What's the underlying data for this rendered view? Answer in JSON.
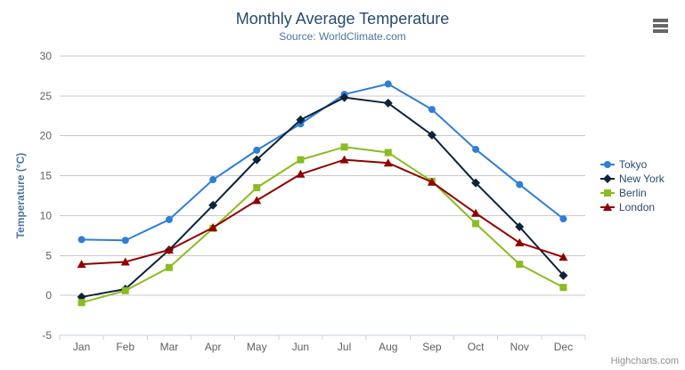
{
  "chart": {
    "title": "Monthly Average Temperature",
    "subtitle": "Source: WorldClimate.com",
    "credits_label": "Highcharts.com"
  },
  "icons": {
    "export_menu": "hamburger-menu-icon"
  },
  "chart_data": {
    "type": "line",
    "title": "Monthly Average Temperature",
    "subtitle": "Source: WorldClimate.com",
    "categories": [
      "Jan",
      "Feb",
      "Mar",
      "Apr",
      "May",
      "Jun",
      "Jul",
      "Aug",
      "Sep",
      "Oct",
      "Nov",
      "Dec"
    ],
    "series": [
      {
        "name": "Tokyo",
        "color": "#2f7ed8",
        "marker": "circle",
        "values": [
          7.0,
          6.9,
          9.5,
          14.5,
          18.2,
          21.5,
          25.2,
          26.5,
          23.3,
          18.3,
          13.9,
          9.6
        ]
      },
      {
        "name": "New York",
        "color": "#0d233a",
        "marker": "diamond",
        "values": [
          -0.2,
          0.8,
          5.7,
          11.3,
          17.0,
          22.0,
          24.8,
          24.1,
          20.1,
          14.1,
          8.6,
          2.5
        ]
      },
      {
        "name": "Berlin",
        "color": "#8bbc21",
        "marker": "square",
        "values": [
          -0.9,
          0.6,
          3.5,
          8.4,
          13.5,
          17.0,
          18.6,
          17.9,
          14.3,
          9.0,
          3.9,
          1.0
        ]
      },
      {
        "name": "London",
        "color": "#910000",
        "marker": "triangle",
        "values": [
          3.9,
          4.2,
          5.7,
          8.5,
          11.9,
          15.2,
          17.0,
          16.6,
          14.2,
          10.3,
          6.6,
          4.8
        ]
      }
    ],
    "xlabel": "",
    "ylabel": "Temperature (°C)",
    "ylim": [
      -5,
      30
    ],
    "ytick_interval": 5,
    "yticks": [
      -5,
      0,
      5,
      10,
      15,
      20,
      25,
      30
    ],
    "grid": true,
    "legend_position": "right",
    "style_colors": {
      "grid": "#c9c9c9",
      "axis_line": "#c0d0e0",
      "axis_label": "#606060",
      "axis_title": "#4d759e",
      "title": "#274b6d",
      "subtitle": "#4d759e",
      "legend_text": "#274b6d",
      "credits": "#909090",
      "export_icon": "#666666"
    }
  }
}
